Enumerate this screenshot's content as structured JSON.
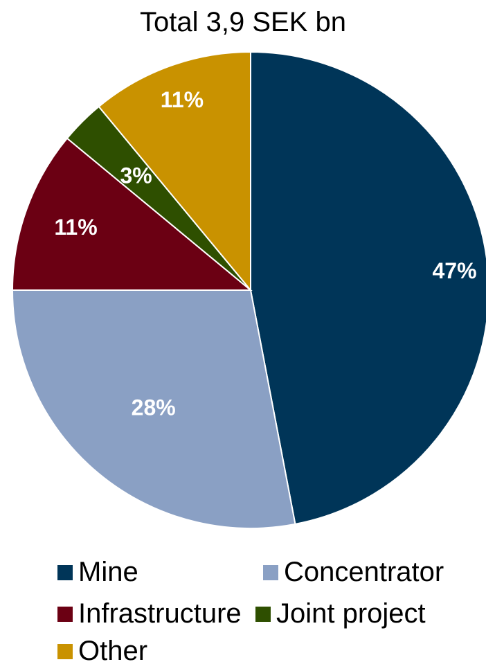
{
  "chart_data": {
    "type": "pie",
    "title": "Total 3,9 SEK bn",
    "slices": [
      {
        "name": "Mine",
        "value": 47,
        "label": "47%",
        "color": "#003558"
      },
      {
        "name": "Concentrator",
        "value": 28,
        "label": "28%",
        "color": "#8aa0c4"
      },
      {
        "name": "Infrastructure",
        "value": 11,
        "label": "11%",
        "color": "#6b0013"
      },
      {
        "name": "Joint project",
        "value": 3,
        "label": "3%",
        "color": "#2e4f00"
      },
      {
        "name": "Other",
        "value": 11,
        "label": "11%",
        "color": "#c99200"
      }
    ],
    "legend": {
      "position": "bottom",
      "columns": 2
    },
    "label_color": "#ffffff"
  }
}
